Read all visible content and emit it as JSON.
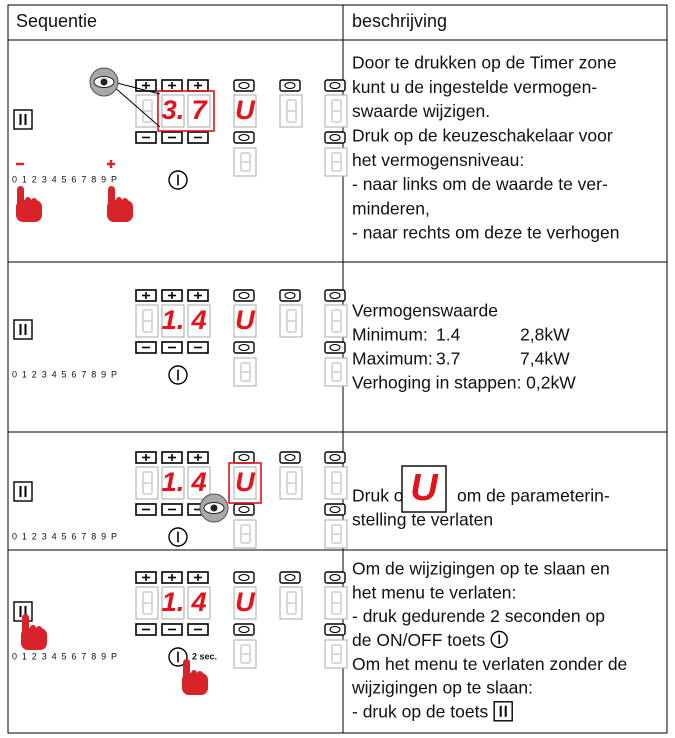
{
  "table": {
    "header": [
      "Sequentie",
      "beschrijving"
    ],
    "rows": [
      {
        "diagram": {
          "digits": [
            "3.",
            "7"
          ],
          "timer": "U",
          "scale": "0 1 2 3 4 5 6 7 8 9 P"
        },
        "lines": [
          "Door te drukken op de Timer zone",
          "kunt u de ingestelde vermogen-",
          "swaarde wijzigen.",
          "Druk op de keuzeschakelaar voor",
          "het vermogensniveau:",
          "- naar links om de waarde te ver-",
          "minderen,",
          "- naar rechts om deze te verhogen"
        ]
      },
      {
        "diagram": {
          "digits": [
            "1.",
            "4"
          ],
          "timer": "U",
          "scale": "0 1 2 3 4 5 6 7 8 9 P"
        },
        "lines": [
          "Vermogenswaarde",
          [
            "Minimum:",
            "1.4",
            "2,8kW"
          ],
          [
            "Maximum:",
            "3.7",
            "7,4kW"
          ],
          "Verhoging in stappen: 0,2kW"
        ]
      },
      {
        "diagram": {
          "digits": [
            "1.",
            "4"
          ],
          "timer": "U",
          "scale": "0 1 2 3 4 5 6 7 8 9 P"
        },
        "icon": "U",
        "lines": [
          "Druk op",
          "om de parameterin-",
          "stelling te verlaten"
        ]
      },
      {
        "diagram": {
          "digits": [
            "1.",
            "4"
          ],
          "timer": "U",
          "scale": "0 1 2 3 4 5 6 7 8 9 P",
          "hold": "2 sec."
        },
        "lines": [
          "Om de wijzigingen op te slaan en",
          "het menu te verlaten:",
          "- druk gedurende 2 seconden op",
          "de ON/OFF toets",
          "Om het menu te verlaten zonder de",
          "wijzigingen op te slaan:",
          "- druk op de toets"
        ]
      }
    ]
  }
}
